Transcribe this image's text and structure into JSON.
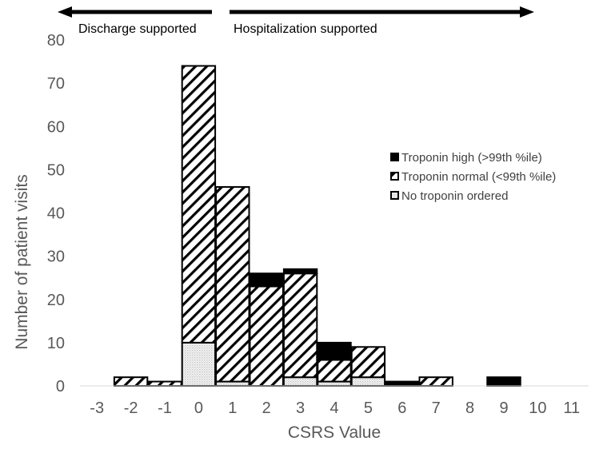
{
  "chart_data": {
    "type": "bar",
    "stacked": true,
    "x": [
      -3,
      -2,
      -1,
      0,
      1,
      2,
      3,
      4,
      5,
      6,
      7,
      8,
      9,
      10,
      11
    ],
    "series": [
      {
        "name": "No troponin ordered",
        "values": [
          0,
          0,
          0,
          10,
          1,
          0,
          2,
          1,
          2,
          0,
          0,
          0,
          0,
          0,
          0
        ],
        "pattern": "dotted"
      },
      {
        "name": "Troponin normal (<99th %ile)",
        "values": [
          0,
          2,
          1,
          64,
          45,
          23,
          24,
          5,
          7,
          0,
          2,
          0,
          0,
          0,
          0
        ],
        "pattern": "hatched"
      },
      {
        "name": "Troponin high (>99th %ile)",
        "values": [
          0,
          0,
          0,
          0,
          0,
          3,
          1,
          4,
          0,
          1,
          0,
          0,
          2,
          0,
          0
        ],
        "pattern": "solid"
      }
    ],
    "legend_order": [
      "Troponin high (>99th %ile)",
      "Troponin normal (<99th %ile)",
      "No troponin ordered"
    ],
    "legend_placement": "right",
    "xlabel": "CSRS Value",
    "ylabel": "Number of patient visits",
    "ylim": [
      0,
      80
    ],
    "yticks": [
      0,
      10,
      20,
      30,
      40,
      50,
      60,
      70,
      80
    ],
    "grid": false,
    "annotations": {
      "left_arrow": "Discharge supported",
      "right_arrow": "Hospitalization supported"
    },
    "colors": {
      "bar_stroke": "#000000",
      "solid_fill": "#000000",
      "dotted_fill": "#dcdcdc",
      "axis_text": "#595959"
    }
  }
}
